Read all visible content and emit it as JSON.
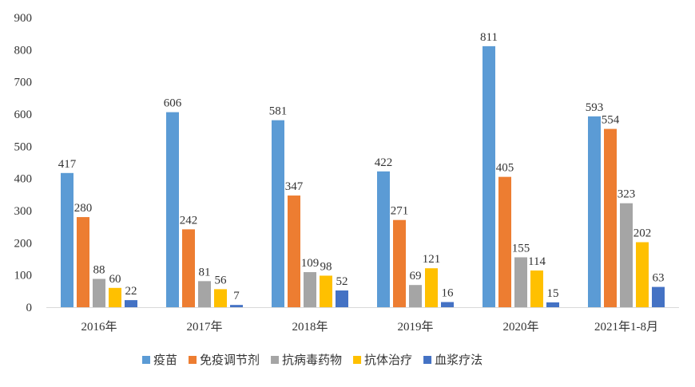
{
  "chart_data": {
    "type": "bar",
    "title": "",
    "xlabel": "",
    "ylabel": "",
    "ylim": [
      0,
      900
    ],
    "yticks": [
      0,
      100,
      200,
      300,
      400,
      500,
      600,
      700,
      800,
      900
    ],
    "grid": false,
    "legend_position": "bottom",
    "categories": [
      "2016年",
      "2017年",
      "2018年",
      "2019年",
      "2020年",
      "2021年1-8月"
    ],
    "series": [
      {
        "name": "疫苗",
        "color": "#5B9BD5",
        "values": [
          417,
          606,
          581,
          422,
          811,
          593
        ]
      },
      {
        "name": "免疫调节剂",
        "color": "#ED7D31",
        "values": [
          280,
          242,
          347,
          271,
          405,
          554
        ]
      },
      {
        "name": "抗病毒药物",
        "color": "#A5A5A5",
        "values": [
          88,
          81,
          109,
          69,
          155,
          323
        ]
      },
      {
        "name": "抗体治疗",
        "color": "#FFC000",
        "values": [
          60,
          56,
          98,
          121,
          114,
          202
        ]
      },
      {
        "name": "血浆疗法",
        "color": "#4472C4",
        "values": [
          22,
          7,
          52,
          16,
          15,
          63
        ]
      }
    ]
  }
}
